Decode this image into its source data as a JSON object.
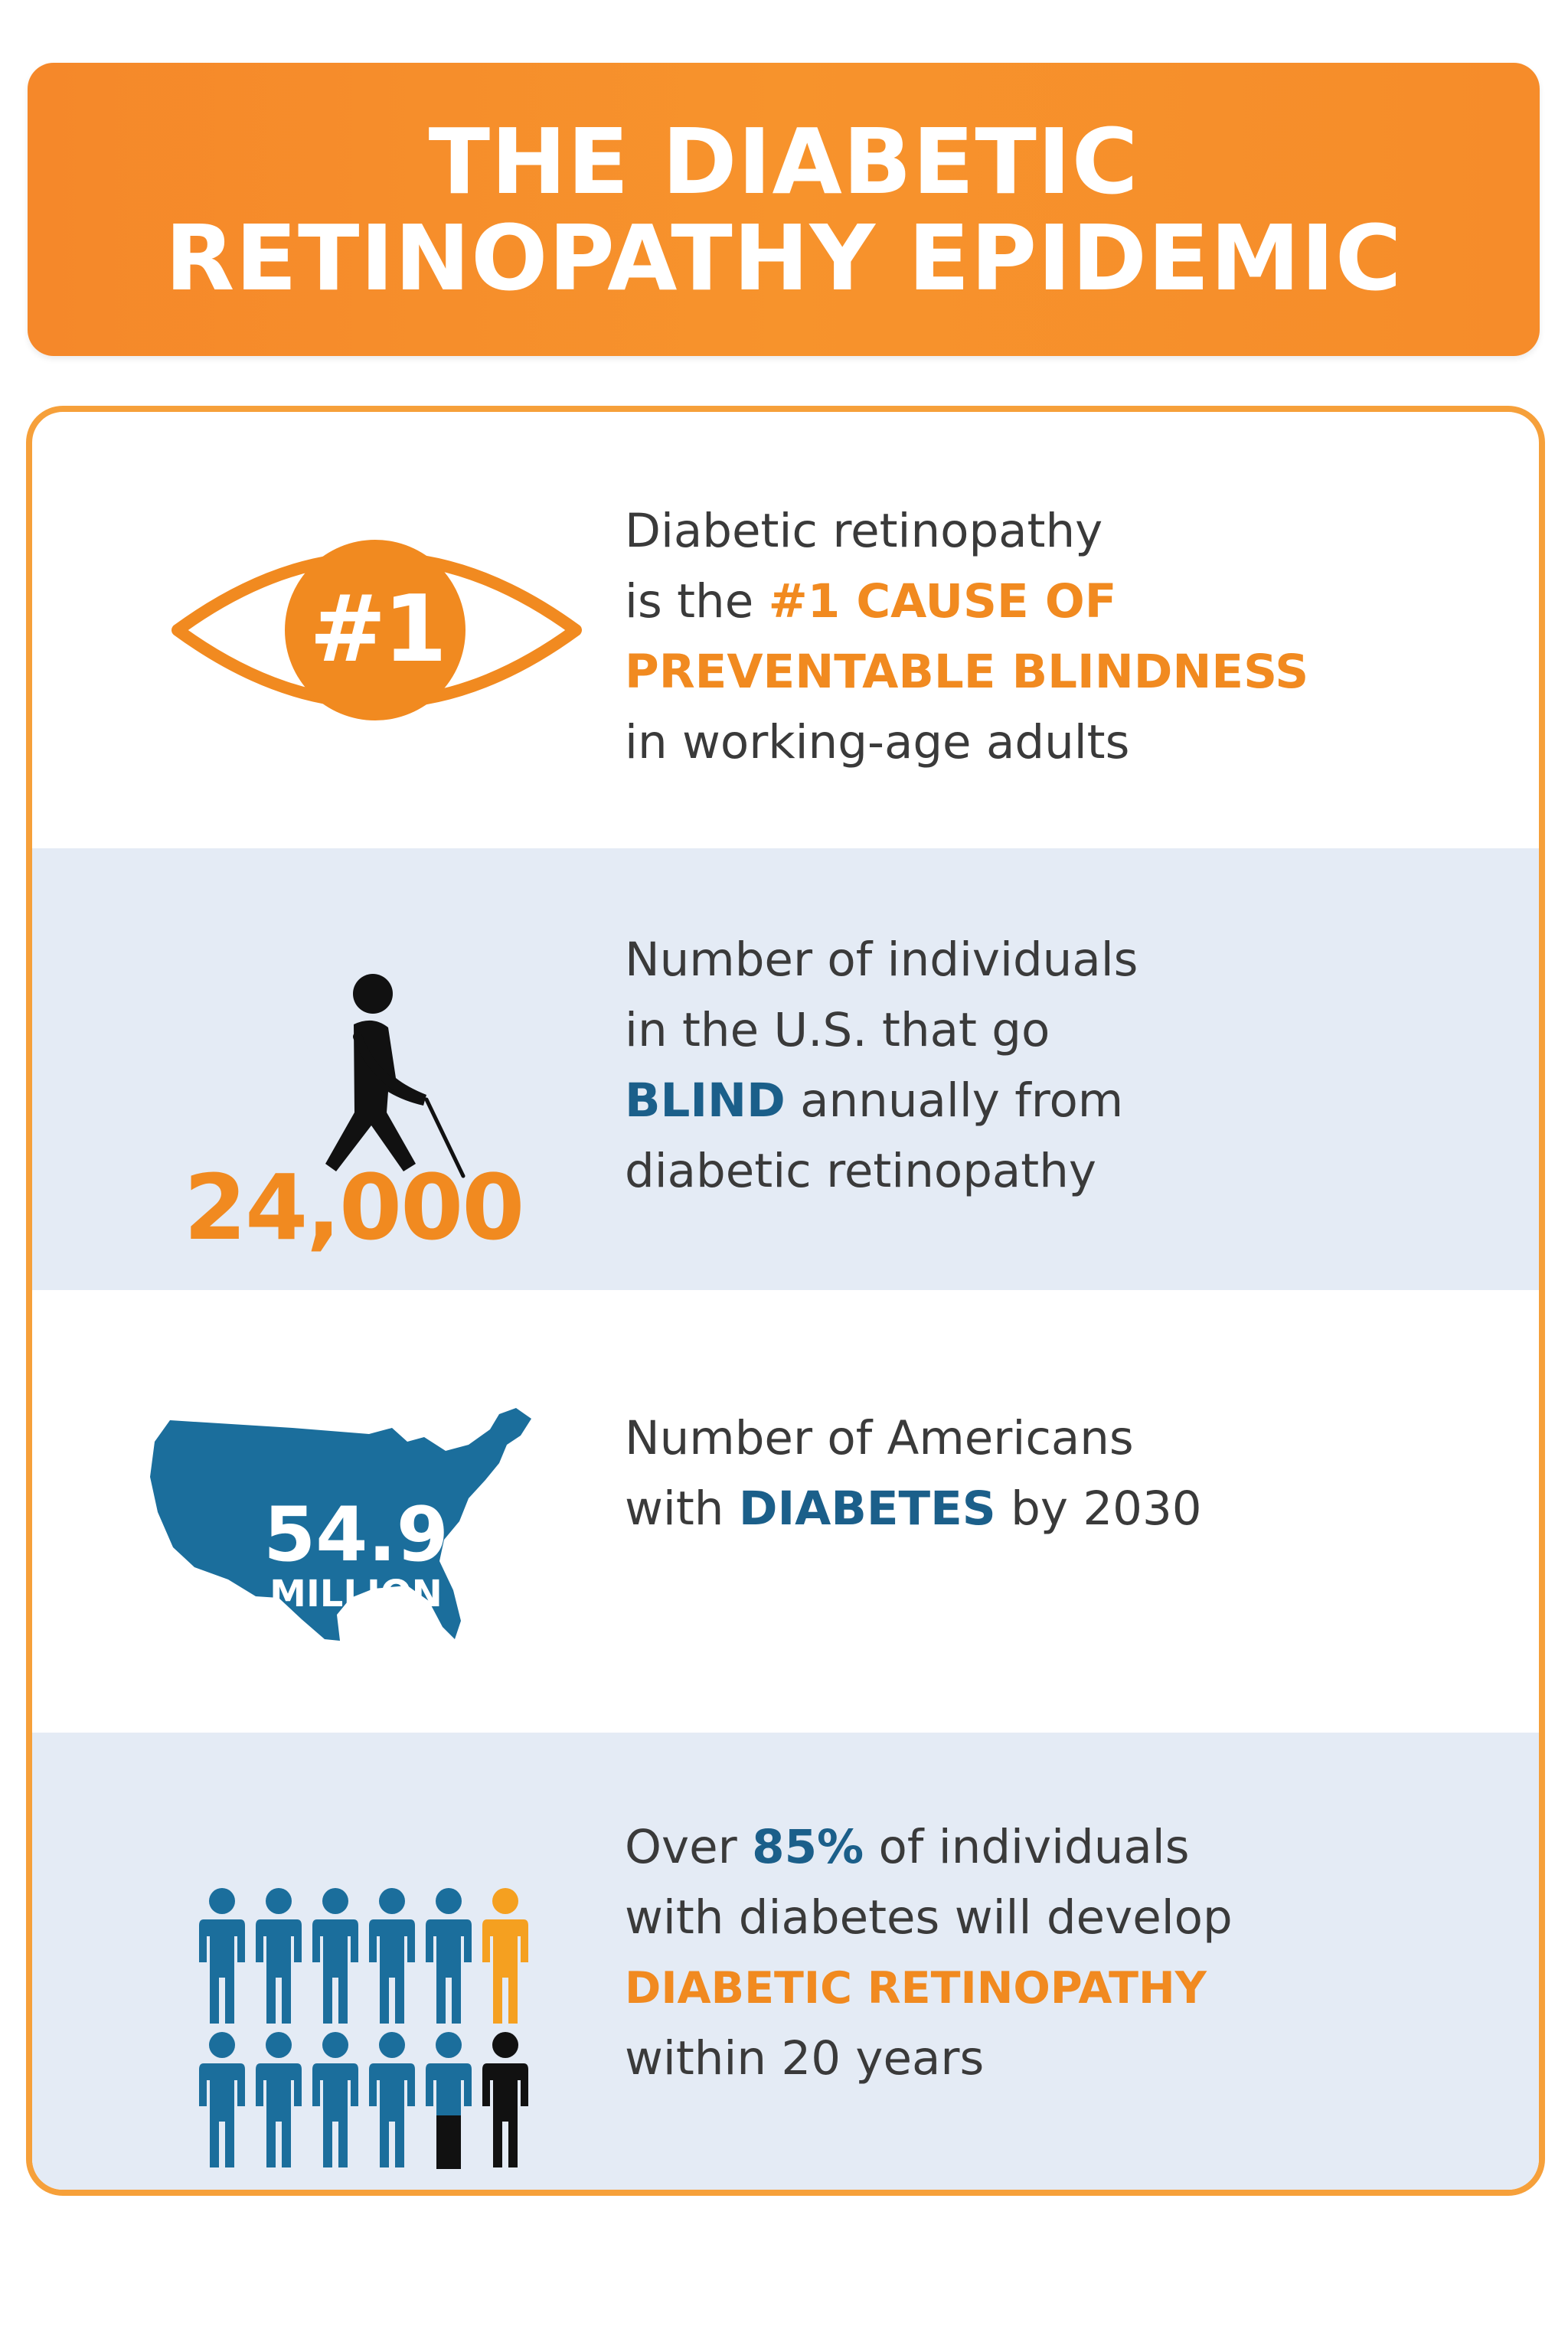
{
  "header": {
    "title_line1": "THE DIABETIC",
    "title_line2": "RETINOPATHY EPIDEMIC"
  },
  "stats": [
    {
      "icon": "eye-icon",
      "badge": "#1",
      "line1": "Diabetic retinopathy",
      "line2_pre": "is the ",
      "line2_em": "#1 CAUSE OF",
      "line3_em": "PREVENTABLE BLINDNESS",
      "line4": "in working-age adults"
    },
    {
      "icon": "blind-person-with-cane-icon",
      "number": "24,000",
      "line1": "Number of individuals",
      "line2": "in the U.S. that go",
      "line3_em": "BLIND",
      "line3_post": " annually from",
      "line4": "diabetic retinopathy"
    },
    {
      "icon": "usa-map-icon",
      "number": "54.9",
      "unit": "MILLION",
      "line1": "Number of Americans",
      "line2_pre": "with ",
      "line2_em": "DIABETES",
      "line2_post": " by 2030"
    },
    {
      "icon": "people-group-icon",
      "line1_pre": "Over ",
      "line1_em": "85%",
      "line1_post": " of individuals",
      "line2": "with diabetes will develop",
      "line3_em": "DIABETIC RETINOPATHY",
      "line4": "within 20 years"
    }
  ],
  "colors": {
    "orange": "#f18a20",
    "blue": "#1b6e9c",
    "dark": "#111111",
    "shade": "#e4ebf5"
  }
}
